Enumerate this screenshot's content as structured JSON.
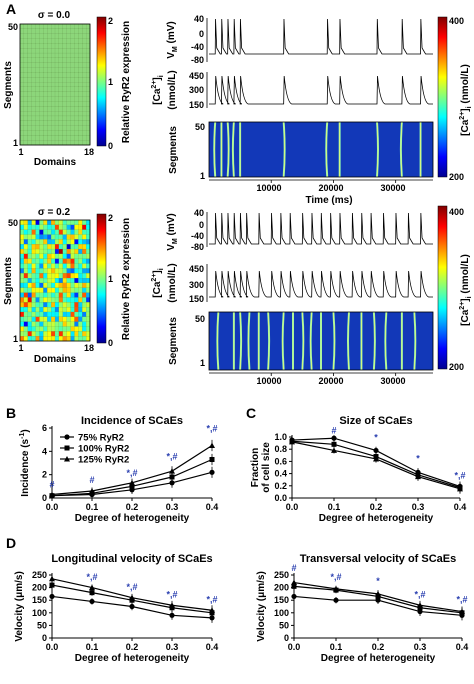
{
  "panel_labels": {
    "A": "A",
    "B": "B",
    "C": "C",
    "D": "D"
  },
  "panelA": {
    "heatmaps": [
      {
        "title": "σ = 0.0",
        "ylabel": "Segments",
        "xlabel": "Domains",
        "y_ticks": [
          "50",
          "1"
        ],
        "x_ticks": [
          "1",
          "18"
        ],
        "cbar_label": "Relative RyR2 expression",
        "cbar_ticks": [
          "2",
          "1",
          "0"
        ],
        "sigma": 0.0
      },
      {
        "title": "σ = 0.2",
        "ylabel": "Segments",
        "xlabel": "Domains",
        "y_ticks": [
          "50",
          "1"
        ],
        "x_ticks": [
          "1",
          "18"
        ],
        "cbar_label": "Relative RyR2 expression",
        "cbar_ticks": [
          "2",
          "1",
          "0"
        ],
        "sigma": 0.2
      }
    ],
    "traces": [
      {
        "vm_label": "V",
        "vm_sub": "M",
        "vm_unit": " (mV)",
        "vm_ticks": [
          "40",
          "0",
          "-40",
          "-80"
        ],
        "ca_label1": "[Ca",
        "ca_sup": "2+",
        "ca_label2": "]",
        "ca_sub": "i",
        "ca_unit": "(nmol/L)",
        "ca_ticks": [
          "450",
          "300",
          "150"
        ],
        "kymo_ylabel": "Segments",
        "kymo_yticks": [
          "50",
          "1"
        ],
        "cbar_ticks": [
          "400",
          "200"
        ],
        "x_ticks": [
          "10000",
          "20000",
          "30000"
        ],
        "xlabel": "Time (ms)",
        "spike_times_ms": [
          1000,
          2000,
          3000,
          4000,
          5000,
          12000,
          19000,
          21000,
          27000,
          31000,
          34000
        ],
        "wave_times_ms": [
          1000,
          2000,
          3000,
          4000,
          5000,
          12000,
          19000,
          21000,
          27000,
          31000,
          34000
        ]
      },
      {
        "vm_label": "V",
        "vm_sub": "M",
        "vm_unit": " (mV)",
        "vm_ticks": [
          "40",
          "0",
          "-40",
          "-80"
        ],
        "ca_label1": "[Ca",
        "ca_sup": "2+",
        "ca_label2": "]",
        "ca_sub": "i",
        "ca_unit": "(nmol/L)",
        "ca_ticks": [
          "450",
          "300",
          "150"
        ],
        "kymo_ylabel": "Segments",
        "kymo_yticks": [
          "50",
          "1"
        ],
        "cbar_ticks": [
          "400",
          "200"
        ],
        "x_ticks": [
          "10000",
          "20000",
          "30000"
        ],
        "xlabel": "",
        "spike_times_ms": [
          1000,
          2000,
          3000,
          4000,
          5000,
          6000,
          8000,
          10000,
          11500,
          13000,
          15000,
          16500,
          18000,
          19500,
          21000,
          23000,
          24500,
          26000,
          28000,
          30000,
          32000,
          34000
        ],
        "wave_times_ms": [
          1500,
          4000,
          5000,
          6500,
          8000,
          9500,
          12000,
          13500,
          15000,
          16500,
          18000,
          20000,
          22500,
          24500,
          26500,
          28500,
          31000,
          33000
        ]
      }
    ],
    "cbar_title_ca": "[Ca",
    "cbar_title_ca_sup": "2+",
    "cbar_title_ca_end": "]",
    "cbar_title_ca_sub": "i",
    "cbar_title_ca_unit": " (nmol/L)"
  },
  "chart_data": [
    {
      "type": "line",
      "panel": "B",
      "title": "Incidence of SCaEs",
      "xlabel": "Degree of heterogeneity",
      "ylabel": "Incidence (s",
      "ylabel_sup": "-1",
      "ylabel_end": ")",
      "x": [
        0.0,
        0.1,
        0.2,
        0.3,
        0.4
      ],
      "xlim": [
        0,
        0.4
      ],
      "ylim": [
        0,
        6
      ],
      "x_ticks": [
        "0.0",
        "0.1",
        "0.2",
        "0.3",
        "0.4"
      ],
      "y_ticks": [
        "0",
        "2",
        "4",
        "6"
      ],
      "series": [
        {
          "name": "75%  RyR2",
          "marker": "circle",
          "values": [
            0.2,
            0.3,
            0.7,
            1.3,
            2.2
          ]
        },
        {
          "name": "100% RyR2",
          "marker": "square",
          "values": [
            0.2,
            0.4,
            1.0,
            1.8,
            3.3
          ]
        },
        {
          "name": "125% RyR2",
          "marker": "triangle",
          "values": [
            0.3,
            0.6,
            1.3,
            2.3,
            4.5
          ]
        }
      ],
      "annotations": [
        {
          "x": 0.0,
          "text": "#",
          "y": 0.9
        },
        {
          "x": 0.1,
          "text": "#",
          "y": 1.3
        },
        {
          "x": 0.2,
          "text": "*,#",
          "y": 1.9
        },
        {
          "x": 0.3,
          "text": "*,#",
          "y": 3.3
        },
        {
          "x": 0.4,
          "text": "*,#",
          "y": 5.7
        }
      ]
    },
    {
      "type": "line",
      "panel": "C",
      "title": "Size of SCaEs",
      "xlabel": "Degree of heterogeneity",
      "ylabel_line1": "Fraction",
      "ylabel_line2": "of cell size",
      "x": [
        0.0,
        0.1,
        0.2,
        0.3,
        0.4
      ],
      "xlim": [
        0,
        0.4
      ],
      "ylim": [
        0,
        1.0
      ],
      "x_ticks": [
        "0.0",
        "0.1",
        "0.2",
        "0.3",
        "0.4"
      ],
      "y_ticks": [
        "0.0",
        "0.2",
        "0.4",
        "0.6",
        "0.8",
        "1.0"
      ],
      "series": [
        {
          "name": "75%  RyR2",
          "marker": "circle",
          "values": [
            0.95,
            0.98,
            0.78,
            0.42,
            0.19
          ]
        },
        {
          "name": "100% RyR2",
          "marker": "square",
          "values": [
            0.93,
            0.88,
            0.68,
            0.38,
            0.17
          ]
        },
        {
          "name": "125% RyR2",
          "marker": "triangle",
          "values": [
            0.92,
            0.78,
            0.64,
            0.35,
            0.15
          ]
        }
      ],
      "annotations": [
        {
          "x": 0.1,
          "text": "#",
          "y": 1.06
        },
        {
          "x": 0.2,
          "text": "*",
          "y": 0.94
        },
        {
          "x": 0.3,
          "text": "*",
          "y": 0.6
        },
        {
          "x": 0.4,
          "text": "*,#",
          "y": 0.32
        }
      ]
    },
    {
      "type": "line",
      "panel": "D",
      "title": "Longitudinal velocity of SCaEs",
      "xlabel": "Degree of heterogeneity",
      "ylabel": "Velocity (μm/s)",
      "x": [
        0.0,
        0.1,
        0.2,
        0.3,
        0.4
      ],
      "xlim": [
        0,
        0.4
      ],
      "ylim": [
        0,
        250
      ],
      "x_ticks": [
        "0.0",
        "0.1",
        "0.2",
        "0.3",
        "0.4"
      ],
      "y_ticks": [
        "0",
        "50",
        "100",
        "150",
        "200",
        "250"
      ],
      "series": [
        {
          "name": "75%  RyR2",
          "marker": "circle",
          "values": [
            165,
            145,
            125,
            90,
            80
          ]
        },
        {
          "name": "100% RyR2",
          "marker": "square",
          "values": [
            210,
            180,
            150,
            120,
            100
          ]
        },
        {
          "name": "125% RyR2",
          "marker": "triangle",
          "values": [
            235,
            200,
            160,
            130,
            110
          ]
        }
      ],
      "annotations": [
        {
          "x": 0.1,
          "text": "*,#",
          "y": 230
        },
        {
          "x": 0.2,
          "text": "*,#",
          "y": 190
        },
        {
          "x": 0.3,
          "text": "*,#",
          "y": 160
        },
        {
          "x": 0.4,
          "text": "*,#",
          "y": 140
        }
      ]
    },
    {
      "type": "line",
      "panel": "D-right",
      "title": "Transversal velocity of SCaEs",
      "xlabel": "Degree of heterogeneity",
      "ylabel": "Velocity (μm/s)",
      "x": [
        0.0,
        0.1,
        0.2,
        0.3,
        0.4
      ],
      "xlim": [
        0,
        0.4
      ],
      "ylim": [
        0,
        250
      ],
      "x_ticks": [
        "0.0",
        "0.1",
        "0.2",
        "0.3",
        "0.4"
      ],
      "y_ticks": [
        "0",
        "50",
        "100",
        "150",
        "200",
        "250"
      ],
      "series": [
        {
          "name": "75%  RyR2",
          "marker": "circle",
          "values": [
            165,
            150,
            150,
            105,
            90
          ]
        },
        {
          "name": "100% RyR2",
          "marker": "square",
          "values": [
            205,
            190,
            165,
            120,
            100
          ]
        },
        {
          "name": "125% RyR2",
          "marker": "triangle",
          "values": [
            220,
            195,
            175,
            130,
            105
          ]
        }
      ],
      "annotations": [
        {
          "x": 0.0,
          "text": "#",
          "y": 265
        },
        {
          "x": 0.1,
          "text": "*,#",
          "y": 230
        },
        {
          "x": 0.2,
          "text": "*",
          "y": 215
        },
        {
          "x": 0.3,
          "text": "*,#",
          "y": 160
        },
        {
          "x": 0.4,
          "text": "*,#",
          "y": 140
        }
      ]
    }
  ]
}
